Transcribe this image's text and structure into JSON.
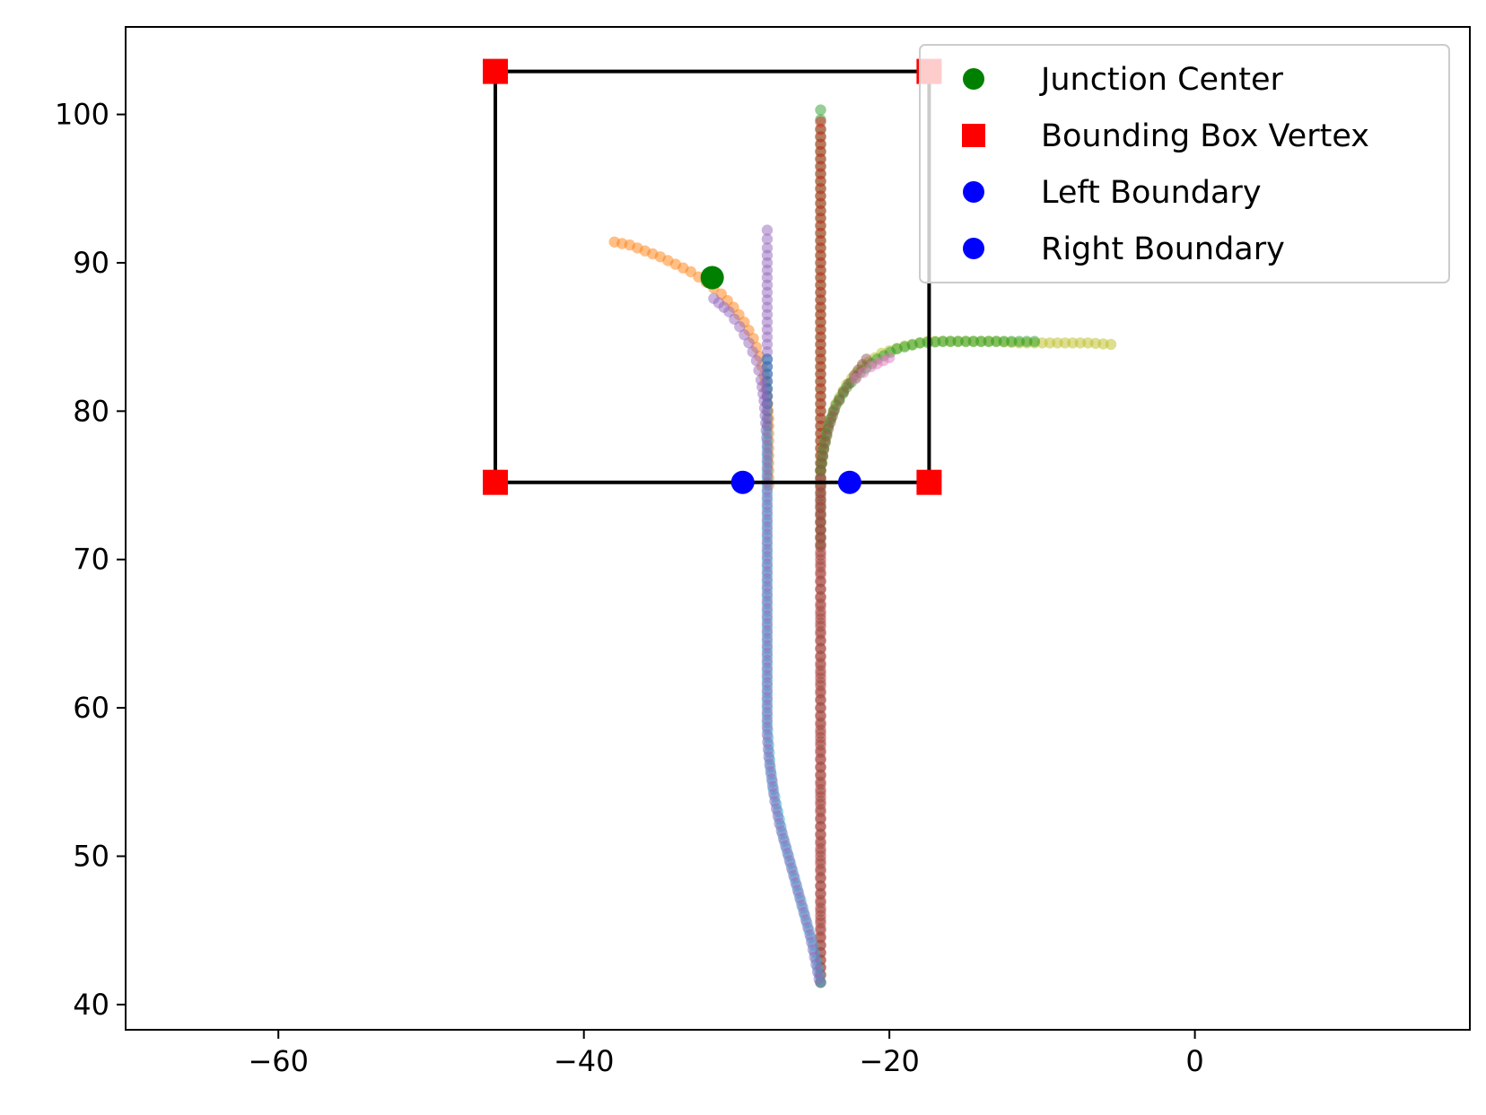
{
  "chart_data": {
    "type": "scatter",
    "title": "",
    "xlabel": "",
    "ylabel": "",
    "xlim": [
      -70,
      18
    ],
    "ylim": [
      38.3,
      105.9
    ],
    "grid": false,
    "legend_position": "top-right",
    "x_ticks": [
      -60,
      -40,
      -20,
      0
    ],
    "x_tick_labels": [
      "−60",
      "−40",
      "−20",
      "0"
    ],
    "y_ticks": [
      40,
      50,
      60,
      70,
      80,
      90,
      100
    ],
    "y_tick_labels": [
      "40",
      "50",
      "60",
      "70",
      "80",
      "90",
      "100"
    ],
    "junction_center": {
      "x": -31.6,
      "y": 89.0,
      "color": "#008000"
    },
    "bounding_box": {
      "color": "#000000",
      "vertex_color": "#ff0000",
      "vertices": [
        {
          "x": -45.8,
          "y": 75.2
        },
        {
          "x": -17.4,
          "y": 75.2
        },
        {
          "x": -17.4,
          "y": 102.9
        },
        {
          "x": -45.8,
          "y": 102.9
        }
      ]
    },
    "left_boundary": {
      "x": -29.6,
      "y": 75.2,
      "color": "#0000ff"
    },
    "right_boundary": {
      "x": -22.6,
      "y": 75.2,
      "color": "#0000ff"
    },
    "legend": [
      {
        "label": "Junction Center",
        "marker": "circle",
        "color": "#008000"
      },
      {
        "label": "Bounding Box Vertex",
        "marker": "square",
        "color": "#ff0000"
      },
      {
        "label": "Left Boundary",
        "marker": "circle",
        "color": "#0000ff"
      },
      {
        "label": "Right Boundary",
        "marker": "circle",
        "color": "#0000ff"
      }
    ],
    "trajectories": [
      {
        "color": "#2ca02c",
        "points": [
          [
            -24.5,
            100.3
          ],
          [
            -24.5,
            99.0
          ],
          [
            -24.5,
            97.0
          ],
          [
            -24.5,
            95.0
          ],
          [
            -24.5,
            93.0
          ],
          [
            -24.5,
            91.0
          ],
          [
            -24.5,
            89.0
          ],
          [
            -24.5,
            87.0
          ],
          [
            -24.5,
            85.0
          ],
          [
            -24.5,
            83.0
          ],
          [
            -24.5,
            81.0
          ],
          [
            -24.5,
            79.0
          ],
          [
            -24.5,
            77.0
          ],
          [
            -24.5,
            75.0
          ],
          [
            -24.5,
            73.0
          ],
          [
            -24.5,
            71.0
          ]
        ]
      },
      {
        "color": "#d62728",
        "points": [
          [
            -24.5,
            99.5
          ],
          [
            -24.5,
            97.0
          ],
          [
            -24.5,
            94.0
          ],
          [
            -24.5,
            91.0
          ],
          [
            -24.5,
            88.0
          ],
          [
            -24.5,
            85.0
          ],
          [
            -24.5,
            82.0
          ],
          [
            -24.5,
            79.0
          ],
          [
            -24.5,
            76.0
          ],
          [
            -24.5,
            73.0
          ],
          [
            -24.5,
            70.0
          ],
          [
            -24.5,
            67.0
          ],
          [
            -24.5,
            64.0
          ],
          [
            -24.5,
            61.0
          ],
          [
            -24.5,
            58.0
          ],
          [
            -24.5,
            55.0
          ],
          [
            -24.5,
            52.0
          ],
          [
            -24.5,
            49.0
          ],
          [
            -24.5,
            46.0
          ],
          [
            -24.5,
            43.0
          ],
          [
            -24.5,
            41.5
          ]
        ]
      },
      {
        "color": "#bcbd22",
        "points": [
          [
            -5.5,
            84.5
          ],
          [
            -7.0,
            84.6
          ],
          [
            -8.5,
            84.6
          ],
          [
            -10.0,
            84.6
          ],
          [
            -11.5,
            84.6
          ],
          [
            -13.0,
            84.7
          ],
          [
            -14.5,
            84.7
          ],
          [
            -16.0,
            84.7
          ],
          [
            -17.5,
            84.7
          ],
          [
            -19.0,
            84.4
          ],
          [
            -20.5,
            83.9
          ],
          [
            -21.8,
            83.0
          ],
          [
            -22.8,
            81.8
          ],
          [
            -23.5,
            80.5
          ],
          [
            -24.0,
            79.0
          ],
          [
            -24.3,
            77.5
          ],
          [
            -24.5,
            76.0
          ]
        ]
      },
      {
        "color": "#2ca02c",
        "points": [
          [
            -10.5,
            84.7
          ],
          [
            -12.0,
            84.7
          ],
          [
            -13.5,
            84.7
          ],
          [
            -15.0,
            84.7
          ],
          [
            -16.5,
            84.7
          ],
          [
            -18.0,
            84.6
          ],
          [
            -19.5,
            84.2
          ],
          [
            -20.8,
            83.5
          ],
          [
            -21.9,
            82.6
          ],
          [
            -22.8,
            81.6
          ],
          [
            -23.5,
            80.4
          ],
          [
            -24.0,
            79.0
          ],
          [
            -24.3,
            77.5
          ],
          [
            -24.5,
            76.0
          ]
        ]
      },
      {
        "color": "#8c564b",
        "points": [
          [
            -21.5,
            83.5
          ],
          [
            -22.3,
            82.4
          ],
          [
            -23.0,
            81.3
          ],
          [
            -23.6,
            80.1
          ],
          [
            -24.0,
            78.8
          ],
          [
            -24.3,
            77.4
          ],
          [
            -24.5,
            76.0
          ],
          [
            -24.5,
            72.0
          ],
          [
            -24.5,
            68.0
          ],
          [
            -24.5,
            64.0
          ],
          [
            -24.5,
            60.0
          ],
          [
            -24.5,
            56.0
          ],
          [
            -24.5,
            52.0
          ],
          [
            -24.5,
            48.0
          ],
          [
            -24.5,
            44.0
          ],
          [
            -24.5,
            41.5
          ]
        ]
      },
      {
        "color": "#e377c2",
        "points": [
          [
            -20.0,
            83.6
          ],
          [
            -21.2,
            83.0
          ],
          [
            -22.2,
            82.2
          ]
        ]
      },
      {
        "color": "#ff7f0e",
        "points": [
          [
            -38.0,
            91.4
          ],
          [
            -37.0,
            91.2
          ],
          [
            -36.0,
            90.8
          ],
          [
            -35.0,
            90.4
          ],
          [
            -34.0,
            89.9
          ],
          [
            -33.0,
            89.4
          ],
          [
            -32.0,
            88.7
          ],
          [
            -31.0,
            87.9
          ],
          [
            -30.2,
            87.0
          ],
          [
            -29.5,
            86.0
          ],
          [
            -28.9,
            84.9
          ],
          [
            -28.5,
            83.7
          ],
          [
            -28.2,
            82.4
          ],
          [
            -28.0,
            81.0
          ],
          [
            -27.9,
            79.5
          ],
          [
            -27.9,
            78.0
          ],
          [
            -27.9,
            76.5
          ],
          [
            -27.9,
            75.0
          ]
        ]
      },
      {
        "color": "#9467bd",
        "points": [
          [
            -28.0,
            92.2
          ],
          [
            -28.0,
            91.0
          ],
          [
            -28.0,
            89.5
          ],
          [
            -28.0,
            88.0
          ],
          [
            -28.0,
            86.5
          ],
          [
            -28.0,
            85.0
          ],
          [
            -28.0,
            83.5
          ],
          [
            -28.0,
            82.0
          ],
          [
            -28.0,
            80.5
          ]
        ]
      },
      {
        "color": "#1f77b4",
        "points": [
          [
            -28.0,
            83.5
          ],
          [
            -28.0,
            82.0
          ],
          [
            -28.0,
            80.5
          ],
          [
            -28.0,
            79.0
          ]
        ]
      },
      {
        "color": "#17becf",
        "points": [
          [
            -28.0,
            78.5
          ],
          [
            -28.0,
            77.0
          ],
          [
            -28.0,
            75.5
          ],
          [
            -28.0,
            74.0
          ],
          [
            -28.0,
            72.5
          ],
          [
            -28.0,
            71.0
          ],
          [
            -28.0,
            69.5
          ],
          [
            -28.0,
            68.0
          ],
          [
            -28.0,
            66.5
          ],
          [
            -28.0,
            65.0
          ],
          [
            -28.0,
            63.5
          ],
          [
            -28.0,
            62.0
          ],
          [
            -28.0,
            60.5
          ],
          [
            -28.0,
            59.0
          ],
          [
            -27.9,
            57.5
          ],
          [
            -27.8,
            56.0
          ],
          [
            -27.6,
            54.5
          ],
          [
            -27.3,
            53.0
          ],
          [
            -27.0,
            51.5
          ],
          [
            -26.6,
            50.0
          ],
          [
            -26.2,
            48.5
          ],
          [
            -25.8,
            47.0
          ],
          [
            -25.4,
            45.5
          ],
          [
            -25.0,
            44.0
          ],
          [
            -24.7,
            42.5
          ],
          [
            -24.5,
            41.5
          ]
        ]
      },
      {
        "color": "#9467bd",
        "points": [
          [
            -31.5,
            87.6
          ],
          [
            -30.5,
            86.7
          ],
          [
            -29.8,
            85.7
          ],
          [
            -29.2,
            84.6
          ],
          [
            -28.7,
            83.4
          ],
          [
            -28.4,
            82.1
          ],
          [
            -28.2,
            80.7
          ],
          [
            -28.1,
            79.2
          ],
          [
            -28.0,
            77.7
          ],
          [
            -28.0,
            76.2
          ],
          [
            -28.0,
            74.7
          ],
          [
            -28.0,
            73.2
          ],
          [
            -28.0,
            71.7
          ],
          [
            -28.0,
            70.2
          ],
          [
            -28.0,
            68.7
          ],
          [
            -28.0,
            67.2
          ],
          [
            -28.0,
            65.7
          ],
          [
            -28.0,
            64.2
          ],
          [
            -28.0,
            62.7
          ],
          [
            -28.0,
            61.2
          ],
          [
            -28.0,
            59.7
          ],
          [
            -28.0,
            58.2
          ],
          [
            -27.9,
            56.7
          ],
          [
            -27.7,
            55.2
          ],
          [
            -27.5,
            53.7
          ],
          [
            -27.2,
            52.2
          ],
          [
            -26.8,
            50.7
          ],
          [
            -26.4,
            49.2
          ],
          [
            -26.0,
            47.7
          ],
          [
            -25.6,
            46.2
          ],
          [
            -25.2,
            44.7
          ],
          [
            -24.9,
            43.2
          ],
          [
            -24.6,
            41.7
          ]
        ]
      }
    ]
  }
}
